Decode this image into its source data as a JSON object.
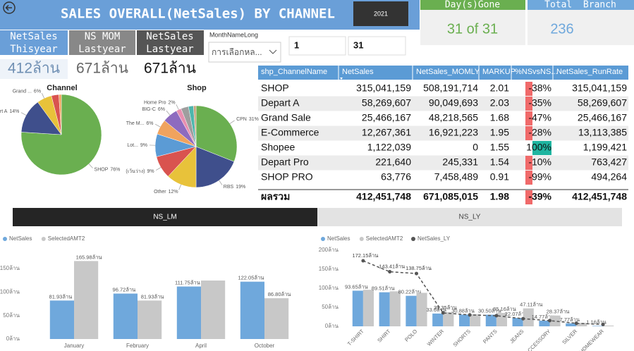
{
  "header": {
    "title": "SALES OVERALL(NetSales) BY CHANNEL",
    "year": "2021"
  },
  "cards": [
    {
      "label": "Day(s)Gone",
      "value": "31 of 31"
    },
    {
      "label": "Total  Branch",
      "value": "236"
    }
  ],
  "kpis": [
    {
      "label": [
        "NetSales",
        "Thisyear"
      ],
      "value": "412ล้าน"
    },
    {
      "label": [
        "NS MOM",
        "Lastyear"
      ],
      "value": "671ล้าน"
    },
    {
      "label": [
        "NetSales",
        "Lastyear"
      ],
      "value": "671ล้าน"
    }
  ],
  "slicer": {
    "label": "MonthNameLong",
    "placeholder": "การเลือกหล...",
    "from": "1",
    "to": "31"
  },
  "table": {
    "columns": [
      "shp_ChannelName",
      "NetSales",
      "NetSales_MOMLY",
      "MARKUP",
      "%NSvsNS...",
      "NetSales_RunRate"
    ],
    "rows": [
      [
        "SHOP",
        "315,041,159",
        "508,191,714",
        "2.01",
        "-38%",
        "315,041,159"
      ],
      [
        "Depart A",
        "58,269,607",
        "90,049,693",
        "2.03",
        "-35%",
        "58,269,607"
      ],
      [
        "Grand Sale",
        "25,466,167",
        "48,218,565",
        "1.68",
        "-47%",
        "25,466,167"
      ],
      [
        "E-Commerce",
        "12,267,361",
        "16,921,223",
        "1.95",
        "-28%",
        "13,113,385"
      ],
      [
        "Shopee",
        "1,122,039",
        "0",
        "1.55",
        "100%",
        "1,199,421"
      ],
      [
        "Depart Pro",
        "221,640",
        "245,331",
        "1.54",
        "-10%",
        "763,427"
      ],
      [
        "SHOP PRO",
        "63,776",
        "7,458,489",
        "0.91",
        "-99%",
        "494,264"
      ]
    ],
    "total": [
      "ผลรวม",
      "412,451,748",
      "671,085,015",
      "1.98",
      "-39%",
      "412,451,748"
    ]
  },
  "tabs": [
    "NS_LM",
    "NS_LY"
  ],
  "chart_data": [
    {
      "type": "pie",
      "title": "Channel",
      "categories": [
        "SHOP",
        "Depart A",
        "Grand ...",
        null,
        null
      ],
      "values": [
        76,
        14,
        6,
        3,
        1
      ],
      "value_labels": [
        "76%",
        "14%",
        "6%",
        null,
        null
      ],
      "colors": [
        "#6aaf50",
        "#3f4f8c",
        "#e8c23a",
        "#d9534f",
        "#f0a35e"
      ]
    },
    {
      "type": "pie",
      "title": "Shop",
      "categories": [
        "CPN",
        "RBS",
        "Other",
        "(เว้นว่าง)",
        "Lot...",
        "The M...",
        "BIG-C",
        "Home Pro",
        null,
        null,
        null
      ],
      "values": [
        31,
        19,
        12,
        9,
        9,
        6,
        6,
        2,
        3,
        2,
        1
      ],
      "value_labels": [
        "31%",
        "19%",
        "12%",
        "9%",
        "9%",
        "6%",
        "6%",
        "2%",
        null,
        null,
        null
      ],
      "colors": [
        "#6aaf50",
        "#3f4f8c",
        "#e8c23a",
        "#d9534f",
        "#5b9bd5",
        "#f0a35e",
        "#8e6bbf",
        "#e88fb0",
        "#9e9e9e",
        "#4db6ac",
        "#c9a27e"
      ]
    },
    {
      "type": "bar",
      "categories": [
        "January",
        "February",
        "April",
        "October"
      ],
      "series": [
        {
          "name": "NetSales",
          "color": "#6fa8dc",
          "values": [
            81.93,
            96.72,
            111.75,
            122.05
          ],
          "value_labels": [
            "81.93ล้าน",
            "96.72ล้าน",
            "111.75ล้าน",
            "122.05ล้าน"
          ]
        },
        {
          "name": "SelectedAMT2",
          "color": "#c8c8c8",
          "values": [
            165.98,
            81.93,
            124.5,
            86.8
          ],
          "value_labels": [
            "165.98ล้าน",
            "81.93ล้าน",
            null,
            "86.80ล้าน"
          ]
        }
      ],
      "ylim": [
        0,
        200
      ],
      "yticks": [
        {
          "value": 0,
          "label": "0ล้าน"
        },
        {
          "value": 50,
          "label": "50ล้าน"
        },
        {
          "value": 100,
          "label": "100ล้าน"
        },
        {
          "value": 150,
          "label": "150ล้าน"
        }
      ],
      "legend": "top-left"
    },
    {
      "type": "bar",
      "categories": [
        "T-SHIRT",
        "SHIRT",
        "POLO",
        "WINTER",
        "SHORTS",
        "PANTS",
        "JEANS",
        "ACCESSORY",
        "SILVER",
        "HOMEWEAR"
      ],
      "series": [
        {
          "name": "NetSales",
          "color": "#6fa8dc",
          "values": [
            93.65,
            89.51,
            80.22,
            33.6,
            30.88,
            30.5,
            22.07,
            14.77,
            7.77,
            1.16
          ],
          "value_labels": [
            "93.65ล้าน",
            "89.51ล้าน",
            "80.22ล้าน",
            "33.6ล้าน",
            "30.88ล้าน",
            "30.50ล้าน",
            "22.07ล้าน",
            "14.77ล้าน",
            "7.77ล้าน",
            "1.16ล้าน"
          ]
        },
        {
          "name": "SelectedAMT2",
          "color": "#c8c8c8",
          "values": [
            96,
            92,
            88,
            37,
            32,
            35.16,
            47.11,
            28.37,
            9,
            2
          ],
          "value_labels": [
            null,
            null,
            null,
            null,
            null,
            "35.16ล้าน",
            "47.11ล้าน",
            "28.37ล้าน",
            null,
            null
          ]
        },
        {
          "name": "NetSales_LY",
          "color": "#555555",
          "type": "line",
          "dashed": true,
          "values": [
            172.15,
            143.41,
            138.75,
            35.35,
            30,
            28,
            20,
            15,
            8,
            5
          ],
          "value_labels": [
            "172.15ล้าน",
            "143.41ล้าน",
            "138.75ล้าน",
            "35.35ล้าน",
            null,
            null,
            null,
            null,
            null,
            null
          ]
        }
      ],
      "ylim": [
        0,
        200
      ],
      "yticks": [
        {
          "value": 0,
          "label": "0ล้าน"
        },
        {
          "value": 50,
          "label": "50ล้าน"
        },
        {
          "value": 100,
          "label": "100ล้าน"
        },
        {
          "value": 150,
          "label": "150ล้าน"
        },
        {
          "value": 200,
          "label": "200ล้าน"
        }
      ],
      "legend": "top-left"
    }
  ]
}
